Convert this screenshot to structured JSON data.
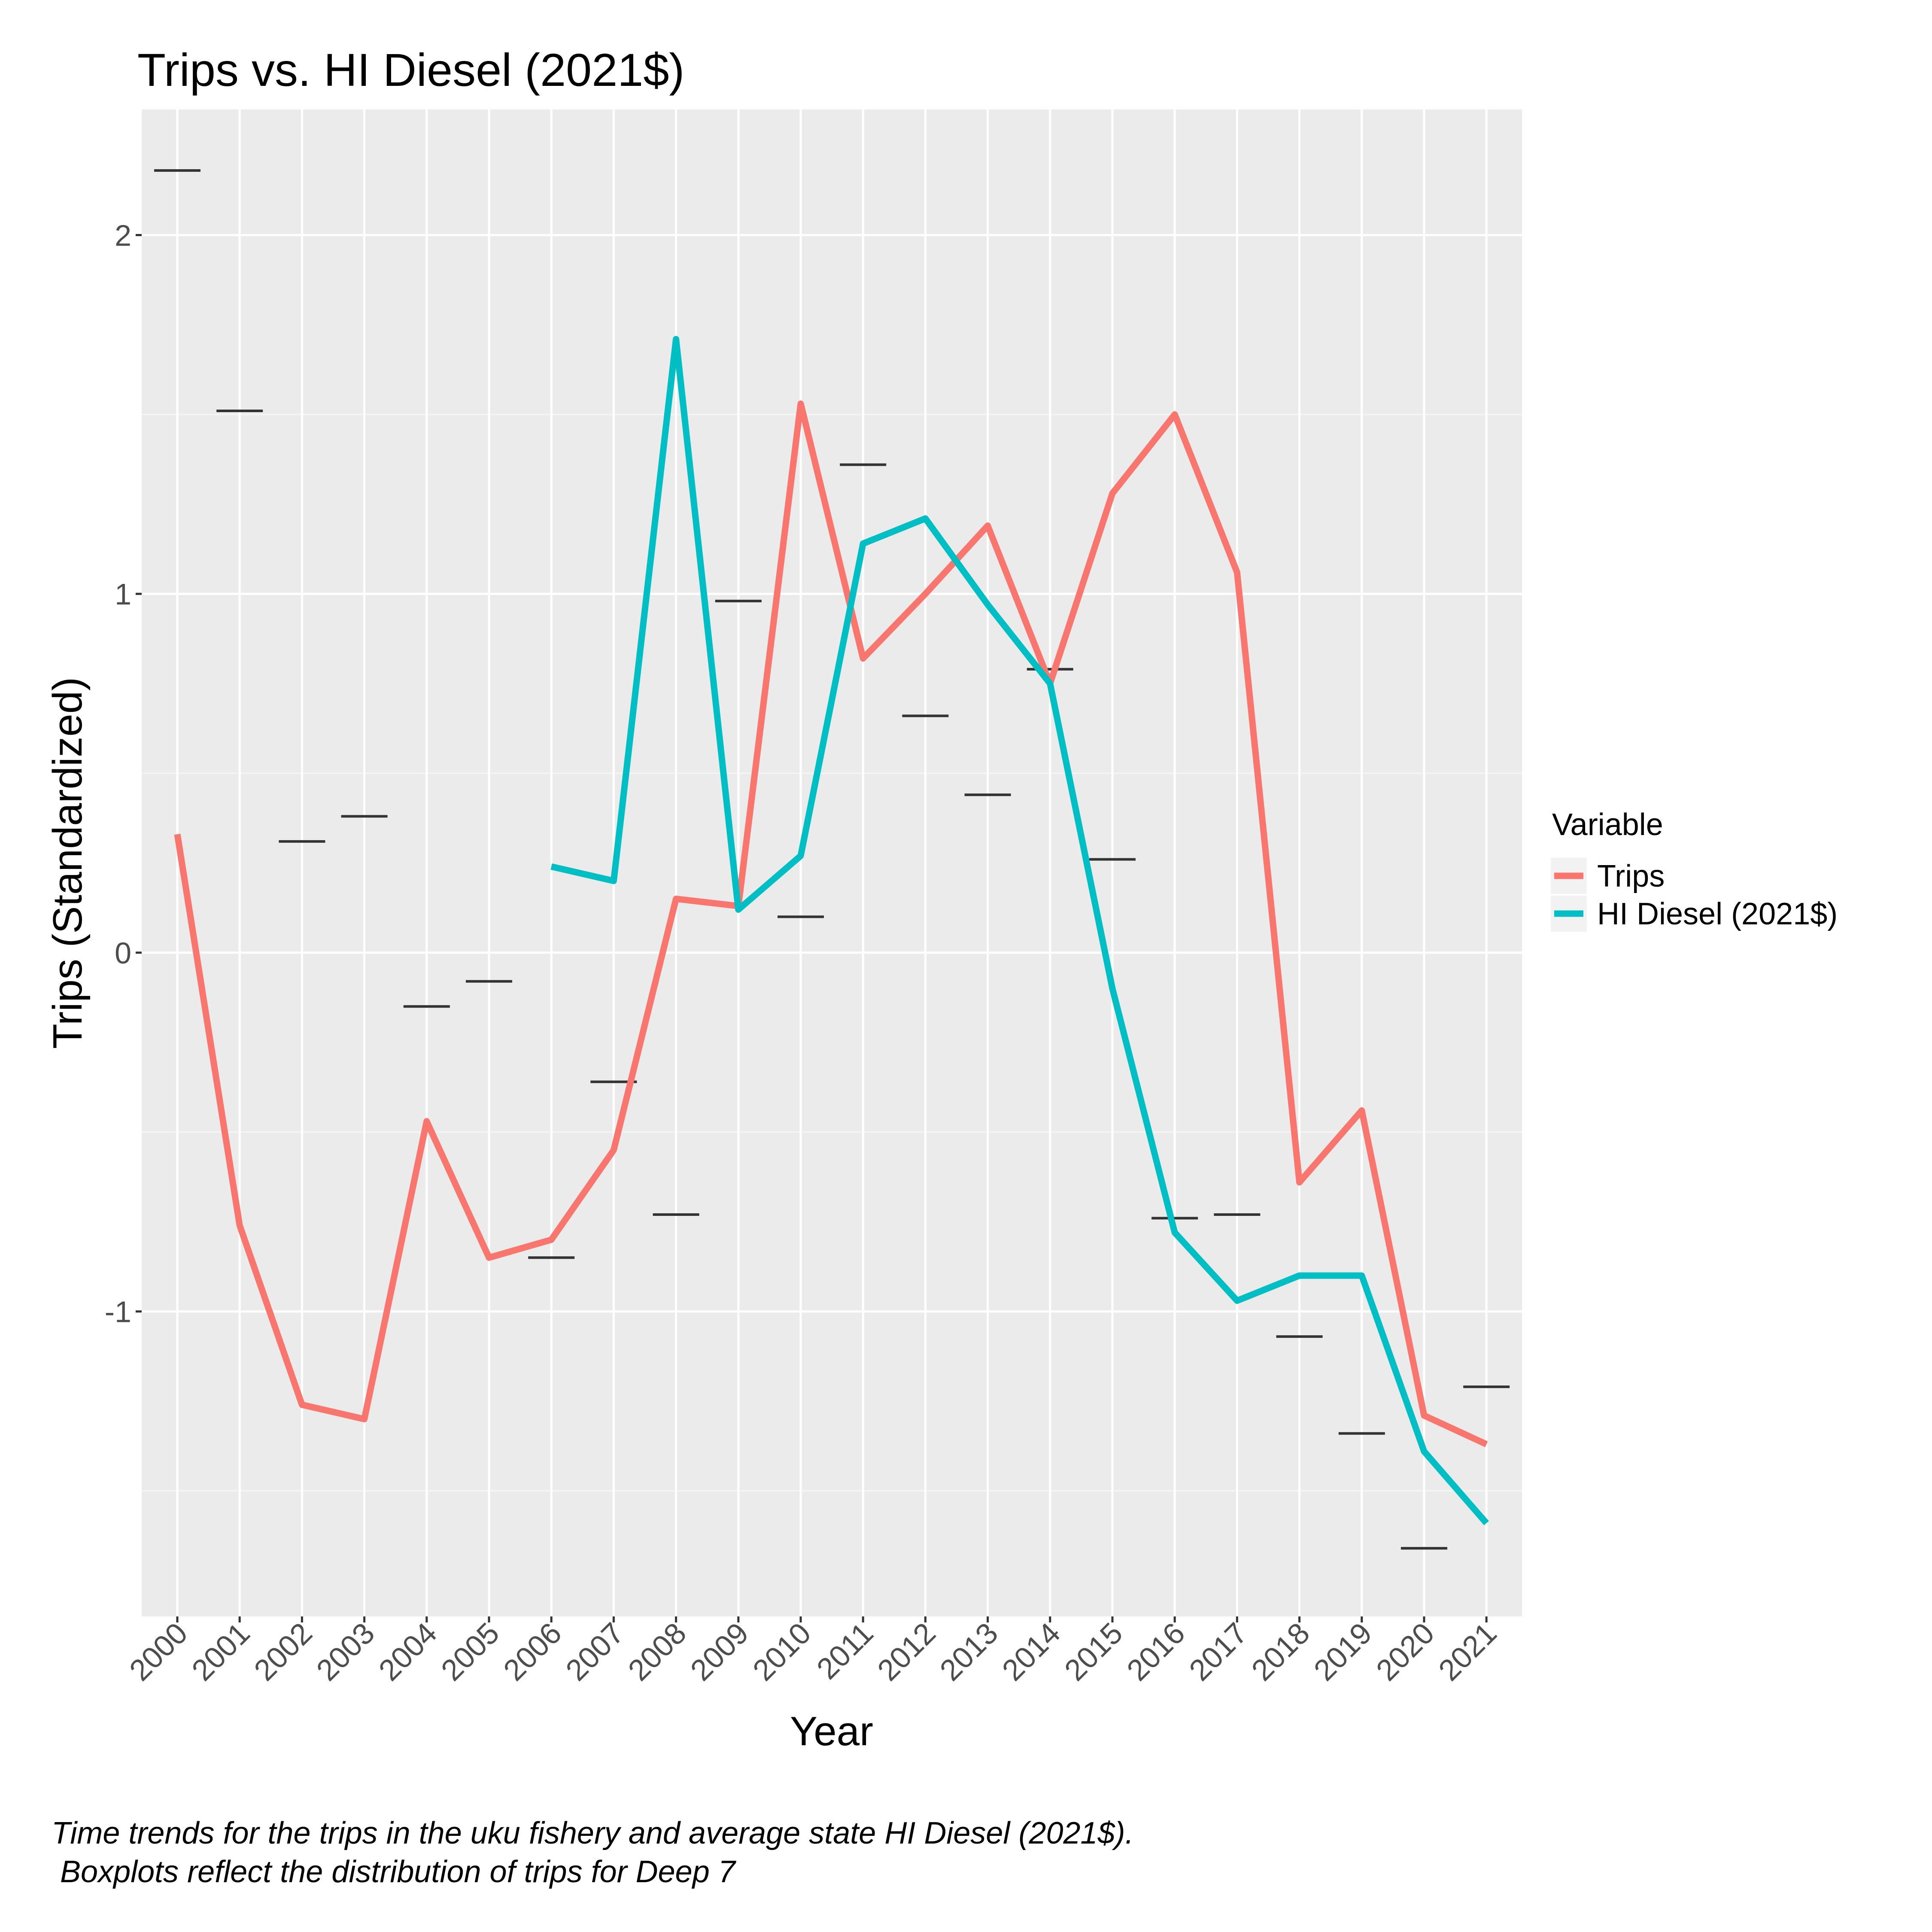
{
  "chart_data": {
    "type": "line",
    "title": "Trips vs. HI Diesel (2021$)",
    "xlabel": "Year",
    "ylabel": "Trips (Standardized)",
    "x": [
      "2000",
      "2001",
      "2002",
      "2003",
      "2004",
      "2005",
      "2006",
      "2007",
      "2008",
      "2009",
      "2010",
      "2011",
      "2012",
      "2013",
      "2014",
      "2015",
      "2016",
      "2017",
      "2018",
      "2019",
      "2020",
      "2021"
    ],
    "ylim": [
      -1.85,
      2.35
    ],
    "yticks": [
      -1,
      0,
      1,
      2
    ],
    "grid": true,
    "legend": {
      "title": "Variable",
      "placement": "right"
    },
    "series": [
      {
        "name": "Trips",
        "color": "#F8766D",
        "values": [
          0.33,
          -0.76,
          -1.26,
          -1.3,
          -0.47,
          -0.85,
          -0.8,
          -0.55,
          0.15,
          0.13,
          1.53,
          0.82,
          1.0,
          1.19,
          0.75,
          1.28,
          1.5,
          1.06,
          -0.64,
          -0.44,
          -1.29,
          -1.37
        ]
      },
      {
        "name": "HI Diesel (2021$)",
        "color": "#00BFC4",
        "values": [
          null,
          null,
          null,
          null,
          null,
          null,
          0.24,
          0.2,
          1.71,
          0.12,
          0.27,
          1.14,
          1.21,
          0.97,
          0.75,
          -0.1,
          -0.78,
          -0.97,
          -0.9,
          -0.9,
          -1.39,
          -1.59
        ]
      }
    ],
    "boxplot_medians": {
      "color": "#333333",
      "values": [
        2.18,
        1.51,
        0.31,
        0.38,
        -0.15,
        -0.08,
        -0.85,
        -0.36,
        -0.73,
        0.98,
        0.1,
        1.36,
        0.66,
        0.44,
        0.79,
        0.26,
        -0.74,
        -0.73,
        -1.07,
        -1.34,
        -1.66,
        -1.21
      ]
    }
  },
  "caption": "Time trends for the trips in the uku fishery and average state HI Diesel (2021$).\n Boxplots reflect the distribution of trips for Deep 7"
}
